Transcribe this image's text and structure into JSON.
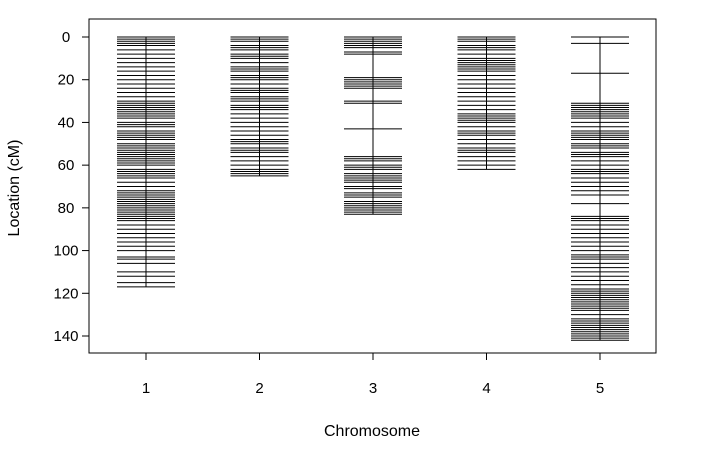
{
  "chart_data": {
    "type": "genetic-map",
    "title": "",
    "xlabel": "Chromosome",
    "ylabel": "Location (cM)",
    "categories": [
      "1",
      "2",
      "3",
      "4",
      "5"
    ],
    "y_ticks": [
      0,
      20,
      40,
      60,
      80,
      100,
      120,
      140
    ],
    "y_tick_labels": [
      "0",
      "20",
      "40",
      "60",
      "80",
      "100",
      "120",
      "140"
    ],
    "ylim": [
      148,
      -3
    ],
    "y_reversed": true,
    "grid": false,
    "line_color": "#000000",
    "chromosomes": [
      {
        "name": "1",
        "length": 117,
        "markers": [
          0,
          1,
          2,
          3,
          4,
          6,
          8,
          10,
          12,
          14,
          16,
          18,
          20,
          22,
          24,
          26,
          28,
          30,
          31,
          32,
          33,
          34,
          35,
          36,
          37,
          38,
          40,
          41,
          42,
          44,
          45,
          46,
          47,
          48,
          50,
          51,
          52,
          53,
          54,
          55,
          56,
          57,
          58,
          59,
          60,
          62,
          63,
          64,
          65,
          66,
          68,
          70,
          72,
          73,
          74,
          75,
          76,
          77,
          78,
          79,
          80,
          81,
          82,
          83,
          84,
          85,
          86,
          88,
          90,
          92,
          94,
          96,
          98,
          100,
          103,
          104,
          106,
          110,
          112,
          115,
          117
        ]
      },
      {
        "name": "2",
        "length": 65,
        "markers": [
          0,
          1,
          2,
          4,
          5,
          6,
          8,
          9,
          10,
          12,
          14,
          15,
          16,
          18,
          19,
          20,
          22,
          24,
          25,
          26,
          28,
          29,
          30,
          32,
          33,
          34,
          36,
          38,
          40,
          42,
          44,
          46,
          48,
          49,
          50,
          52,
          53,
          54,
          56,
          58,
          60,
          62,
          63,
          64,
          65
        ]
      },
      {
        "name": "3",
        "length": 83,
        "markers": [
          0,
          1,
          2,
          3,
          4,
          5,
          7,
          8,
          19,
          20,
          21,
          22,
          23,
          24,
          30,
          31,
          43,
          56,
          57,
          58,
          60,
          61,
          62,
          64,
          65,
          66,
          67,
          68,
          70,
          71,
          73,
          74,
          75,
          77,
          78,
          79,
          80,
          81,
          82,
          83
        ]
      },
      {
        "name": "4",
        "length": 62,
        "markers": [
          0,
          1,
          2,
          4,
          5,
          6,
          8,
          10,
          11,
          12,
          13,
          14,
          15,
          16,
          18,
          20,
          22,
          24,
          26,
          28,
          30,
          32,
          34,
          36,
          37,
          38,
          39,
          40,
          42,
          44,
          45,
          46,
          48,
          50,
          52,
          53,
          54,
          56,
          58,
          60,
          62
        ]
      },
      {
        "name": "5",
        "length": 142,
        "markers": [
          0,
          3,
          17,
          31,
          32,
          33,
          34,
          35,
          36,
          37,
          38,
          40,
          42,
          44,
          45,
          46,
          47,
          48,
          50,
          51,
          52,
          54,
          55,
          56,
          58,
          60,
          62,
          63,
          64,
          66,
          68,
          70,
          72,
          74,
          78,
          84,
          85,
          86,
          88,
          90,
          92,
          94,
          96,
          98,
          100,
          102,
          103,
          104,
          106,
          108,
          110,
          112,
          114,
          116,
          118,
          119,
          120,
          121,
          122,
          123,
          124,
          125,
          126,
          127,
          128,
          130,
          132,
          133,
          134,
          135,
          136,
          137,
          138,
          139,
          140,
          141,
          142
        ]
      }
    ]
  }
}
